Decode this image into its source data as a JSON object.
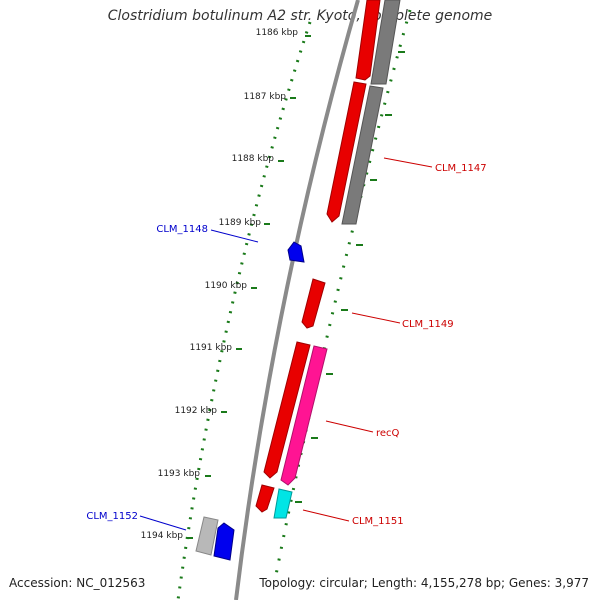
{
  "title": "Clostridium botulinum A2 str. Kyoto, complete genome",
  "footer": {
    "accession": "Accession: NC_012563",
    "summary": "Topology: circular; Length: 4,155,278 bp; Genes: 3,977"
  },
  "ticks": [
    {
      "kbp": 1186,
      "label": "1186 kbp"
    },
    {
      "kbp": 1187,
      "label": "1187 kbp"
    },
    {
      "kbp": 1188,
      "label": "1188 kbp"
    },
    {
      "kbp": 1189,
      "label": "1189 kbp"
    },
    {
      "kbp": 1190,
      "label": "1190 kbp"
    },
    {
      "kbp": 1191,
      "label": "1191 kbp"
    },
    {
      "kbp": 1192,
      "label": "1192 kbp"
    },
    {
      "kbp": 1193,
      "label": "1193 kbp"
    },
    {
      "kbp": 1194,
      "label": "1194 kbp"
    }
  ],
  "labels": [
    {
      "name": "CLM_1147",
      "color": "#cc0000"
    },
    {
      "name": "CLM_1148",
      "color": "#0000cc"
    },
    {
      "name": "CLM_1149",
      "color": "#cc0000"
    },
    {
      "name": "recQ",
      "color": "#cc0000"
    },
    {
      "name": "CLM_1151",
      "color": "#cc0000"
    },
    {
      "name": "CLM_1152",
      "color": "#0000cc"
    }
  ],
  "colors": {
    "forward_cds": "#ff0000",
    "reverse_cds": "#0000ff",
    "other": "#808080",
    "pink": "#ff1493",
    "cyan": "#00e5e5",
    "backbone": "#888888",
    "ticks": "#1a7a1a"
  }
}
